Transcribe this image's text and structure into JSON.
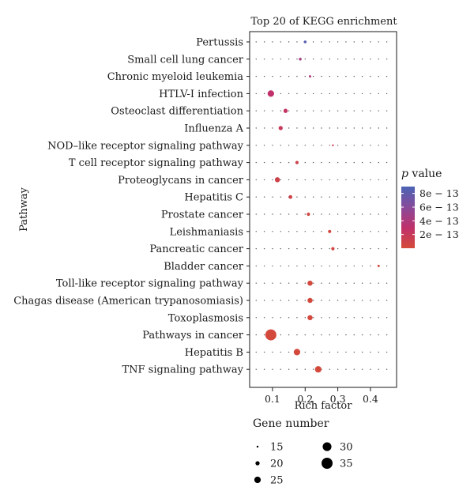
{
  "chart_data": {
    "type": "scatter",
    "title": "Top 20 of KEGG enrichment",
    "xlabel": "Rich factor",
    "ylabel": "Pathway",
    "xlim": [
      0.03,
      0.48
    ],
    "xticks": [
      0.1,
      0.2,
      0.3,
      0.4
    ],
    "xtick_labels": [
      "0.1",
      "0.2",
      "0.3",
      "0.4"
    ],
    "grid": "dotted",
    "categories": [
      "Pertussis",
      "Small cell lung cancer",
      "Chronic myeloid leukemia",
      "HTLV-I infection",
      "Osteoclast differentiation",
      "Influenza A",
      "NOD–like receptor signaling pathway",
      "T cell receptor signaling pathway",
      "Proteoglycans in cancer",
      "Hepatitis C",
      "Prostate cancer",
      "Leishmaniasis",
      "Pancreatic cancer",
      "Bladder cancer",
      "Toll-like receptor signaling pathway",
      "Chagas disease (American trypanosomiasis)",
      "Toxoplasmosis",
      "Pathways in cancer",
      "Hepatitis B",
      "TNF signaling pathway"
    ],
    "points": [
      {
        "pathway": "Pertussis",
        "rich_factor": 0.2,
        "gene_number": 17,
        "p_value": 8.5e-13
      },
      {
        "pathway": "Small cell lung cancer",
        "rich_factor": 0.185,
        "gene_number": 17,
        "p_value": 4.5e-13
      },
      {
        "pathway": "Chronic myeloid leukemia",
        "rich_factor": 0.215,
        "gene_number": 16,
        "p_value": 4e-13
      },
      {
        "pathway": "HTLV-I infection",
        "rich_factor": 0.095,
        "gene_number": 25,
        "p_value": 3e-13
      },
      {
        "pathway": "Osteoclast differentiation",
        "rich_factor": 0.14,
        "gene_number": 20,
        "p_value": 2.5e-13
      },
      {
        "pathway": "Influenza A",
        "rich_factor": 0.125,
        "gene_number": 20,
        "p_value": 2e-13
      },
      {
        "pathway": "NOD–like receptor signaling pathway",
        "rich_factor": 0.285,
        "gene_number": 15,
        "p_value": 1.5e-13
      },
      {
        "pathway": "T cell receptor signaling pathway",
        "rich_factor": 0.175,
        "gene_number": 18,
        "p_value": 1e-13
      },
      {
        "pathway": "Proteoglycans in cancer",
        "rich_factor": 0.115,
        "gene_number": 22,
        "p_value": 1e-13
      },
      {
        "pathway": "Hepatitis C",
        "rich_factor": 0.155,
        "gene_number": 19,
        "p_value": 1e-13
      },
      {
        "pathway": "Prostate cancer",
        "rich_factor": 0.21,
        "gene_number": 18,
        "p_value": 5e-14
      },
      {
        "pathway": "Leishmaniasis",
        "rich_factor": 0.275,
        "gene_number": 18,
        "p_value": 5e-14
      },
      {
        "pathway": "Pancreatic cancer",
        "rich_factor": 0.285,
        "gene_number": 18,
        "p_value": 5e-14
      },
      {
        "pathway": "Bladder cancer",
        "rich_factor": 0.425,
        "gene_number": 16,
        "p_value": 2e-14
      },
      {
        "pathway": "Toll-like receptor signaling pathway",
        "rich_factor": 0.215,
        "gene_number": 22,
        "p_value": 2e-14
      },
      {
        "pathway": "Chagas disease (American trypanosomiasis)",
        "rich_factor": 0.215,
        "gene_number": 22,
        "p_value": 2e-14
      },
      {
        "pathway": "Toxoplasmosis",
        "rich_factor": 0.215,
        "gene_number": 22,
        "p_value": 2e-14
      },
      {
        "pathway": "Pathways in cancer",
        "rich_factor": 0.095,
        "gene_number": 35,
        "p_value": 1e-14
      },
      {
        "pathway": "Hepatitis B",
        "rich_factor": 0.175,
        "gene_number": 25,
        "p_value": 1e-14
      },
      {
        "pathway": "TNF signaling pathway",
        "rich_factor": 0.24,
        "gene_number": 25,
        "p_value": 1e-14
      }
    ],
    "size_legend": {
      "title": "Gene number",
      "values": [
        15,
        20,
        25,
        30,
        35
      ],
      "labels": [
        "15",
        "20",
        "25",
        "30",
        "35"
      ]
    },
    "color_legend": {
      "title_italic": "p",
      "title_rest": " value",
      "range": [
        0,
        9e-13
      ],
      "ticks": [
        8e-13,
        6e-13,
        4e-13,
        2e-13
      ],
      "labels": [
        "8e − 13",
        "6e − 13",
        "4e − 13",
        "2e − 13"
      ],
      "colors": [
        "#d44b3a",
        "#c0306a",
        "#8a4a9a",
        "#4a63b5"
      ]
    }
  }
}
